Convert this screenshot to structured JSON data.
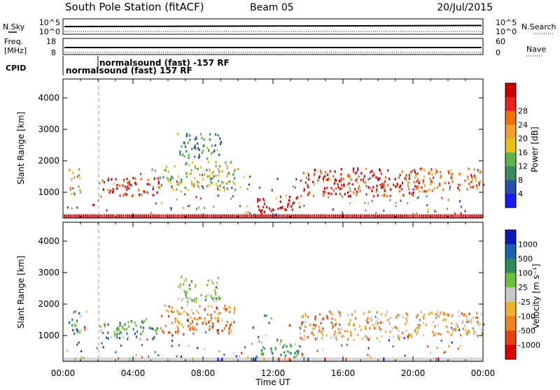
{
  "header": {
    "station": "South Pole Station (fitACF)",
    "beam": "Beam 05",
    "date": "20/Jul/2015"
  },
  "summary_panels": {
    "nsky": {
      "label": "N.Sky",
      "ytop": "10^5",
      "ybottom": "10^0"
    },
    "nsearch": {
      "label": "N.Search",
      "ytop": "10^5",
      "ybottom": "10^0"
    },
    "freq": {
      "label_line1": "Freq.",
      "label_line2": "[MHz]",
      "ytop": "18",
      "ybottom": "8"
    },
    "nave": {
      "label": "Nave",
      "ytop": "60",
      "ybottom": "0"
    },
    "cpid": {
      "label": "CPID",
      "entries": [
        {
          "text": "normalsound (fast) -157 RF",
          "level": "upper"
        },
        {
          "text": "normalsound (fast) 157 RF",
          "level": "lower"
        }
      ]
    }
  },
  "colors": {
    "power_scale": [
      "#1a1aff",
      "#2a4fa8",
      "#3a8a62",
      "#5fb34a",
      "#e6c21a",
      "#f0a030",
      "#f07010",
      "#e82020",
      "#cc0000"
    ],
    "velocity_scale": [
      "#0a1ab8",
      "#2060b0",
      "#2e8a5a",
      "#6fbf3a",
      "#c8c8c8",
      "#f0b030",
      "#f08020",
      "#e84010",
      "#e00000"
    ]
  },
  "chart_data": [
    {
      "type": "heatmap",
      "title": "",
      "quantity": "Power",
      "ylabel": "Slant Range [km]",
      "xlabel": "",
      "yticks": [
        1000,
        2000,
        3000,
        4000
      ],
      "ylim": [
        180,
        4600
      ],
      "xticks": [
        "00:00",
        "04:00",
        "08:00",
        "12:00",
        "16:00",
        "20:00",
        "00:00"
      ],
      "xlim_hours": [
        0,
        24
      ],
      "colorbar": {
        "label": "Power [dB]",
        "ticks": [
          "4",
          "8",
          "12",
          "16",
          "20",
          "24",
          "28"
        ],
        "range": [
          0,
          30
        ]
      },
      "echo_regions": [
        {
          "t": [
            0.3,
            1.0
          ],
          "r": [
            950,
            1800
          ],
          "level": 0.55
        },
        {
          "t": [
            2.0,
            5.5
          ],
          "r": [
            900,
            1500
          ],
          "level": 0.9
        },
        {
          "t": [
            5.5,
            9.8
          ],
          "r": [
            1100,
            2000
          ],
          "level": 0.45
        },
        {
          "t": [
            6.5,
            9.0
          ],
          "r": [
            2100,
            2900
          ],
          "level": 0.3
        },
        {
          "t": [
            11.0,
            13.5
          ],
          "r": [
            350,
            900
          ],
          "level": 0.95
        },
        {
          "t": [
            13.5,
            20.0
          ],
          "r": [
            900,
            1800
          ],
          "level": 0.85
        },
        {
          "t": [
            20.0,
            24.0
          ],
          "r": [
            1000,
            1800
          ],
          "level": 0.7
        }
      ]
    },
    {
      "type": "heatmap",
      "title": "",
      "quantity": "Velocity",
      "ylabel": "Slant Range [km]",
      "xlabel": "Time UT",
      "yticks": [
        1000,
        2000,
        3000,
        4000
      ],
      "ylim": [
        180,
        4600
      ],
      "xticks": [
        "00:00",
        "04:00",
        "08:00",
        "12:00",
        "16:00",
        "20:00",
        "00:00"
      ],
      "xlim_hours": [
        0,
        24
      ],
      "colorbar": {
        "label": "Velocity [m s⁻¹]",
        "ticks": [
          "1000",
          "500",
          "100",
          "25",
          "-25",
          "-100",
          "-500",
          "-1000"
        ],
        "range": [
          -1500,
          1500
        ]
      },
      "echo_regions": [
        {
          "t": [
            0.3,
            1.0
          ],
          "r": [
            950,
            1800
          ],
          "level": 0.35
        },
        {
          "t": [
            2.0,
            5.5
          ],
          "r": [
            900,
            1500
          ],
          "level": 0.3
        },
        {
          "t": [
            5.5,
            9.8
          ],
          "r": [
            1100,
            2000
          ],
          "level": 0.7
        },
        {
          "t": [
            6.5,
            9.0
          ],
          "r": [
            2100,
            2900
          ],
          "level": 0.45
        },
        {
          "t": [
            11.0,
            13.5
          ],
          "r": [
            350,
            900
          ],
          "level": 0.3
        },
        {
          "t": [
            13.5,
            20.0
          ],
          "r": [
            900,
            1800
          ],
          "level": 0.65
        },
        {
          "t": [
            20.0,
            24.0
          ],
          "r": [
            1000,
            1800
          ],
          "level": 0.6
        }
      ]
    }
  ]
}
